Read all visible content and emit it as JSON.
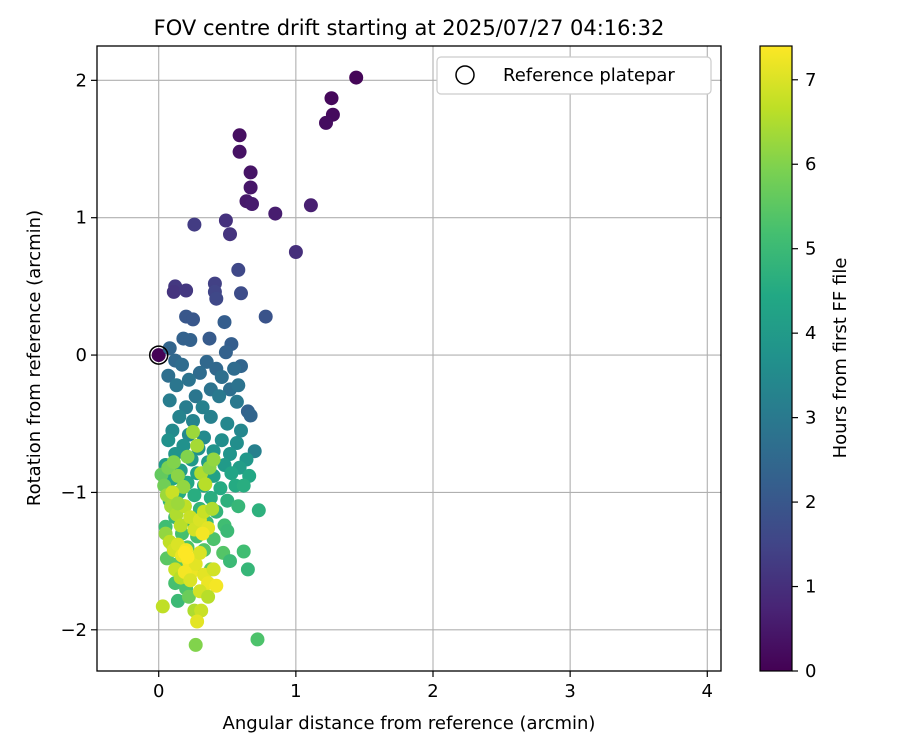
{
  "chart_data": {
    "type": "scatter",
    "title": "FOV centre drift starting at 2025/07/27 04:16:32",
    "xlabel": "Angular distance from reference (arcmin)",
    "ylabel": "Rotation from reference (arcmin)",
    "xlim": [
      -0.45,
      4.1
    ],
    "ylim": [
      -2.3,
      2.25
    ],
    "xticks": [
      0,
      1,
      2,
      3,
      4
    ],
    "yticks": [
      -2,
      -1,
      0,
      1,
      2
    ],
    "xtick_labels": [
      "0",
      "1",
      "2",
      "3",
      "4"
    ],
    "ytick_labels": [
      "−2",
      "−1",
      "0",
      "1",
      "2"
    ],
    "grid": true,
    "legend": {
      "position": "top-right",
      "entries": [
        "Reference platepar"
      ]
    },
    "colorbar": {
      "label": "Hours from first FF file",
      "colormap": "viridis",
      "range": [
        0,
        7.4
      ],
      "ticks": [
        0,
        1,
        2,
        3,
        4,
        5,
        6,
        7
      ],
      "tick_labels": [
        "0",
        "1",
        "2",
        "3",
        "4",
        "5",
        "6",
        "7"
      ]
    },
    "reference_point": {
      "name": "Reference platepar",
      "x": 0,
      "y": 0
    },
    "series": [
      {
        "points": [
          [
            0.0,
            0.0,
            0.05
          ],
          [
            1.44,
            2.02,
            0.1
          ],
          [
            1.26,
            1.87,
            0.15
          ],
          [
            1.27,
            1.75,
            0.2
          ],
          [
            1.22,
            1.69,
            0.25
          ],
          [
            0.59,
            1.6,
            0.3
          ],
          [
            0.59,
            1.48,
            0.35
          ],
          [
            0.67,
            1.33,
            0.4
          ],
          [
            0.67,
            1.22,
            0.45
          ],
          [
            0.64,
            1.12,
            0.5
          ],
          [
            0.68,
            1.1,
            0.55
          ],
          [
            0.85,
            1.03,
            0.6
          ],
          [
            1.11,
            1.09,
            0.65
          ],
          [
            1.0,
            0.75,
            1.0
          ],
          [
            0.49,
            0.98,
            1.05
          ],
          [
            0.52,
            0.88,
            1.1
          ],
          [
            0.26,
            0.95,
            1.3
          ],
          [
            0.41,
            0.52,
            1.4
          ],
          [
            0.41,
            0.46,
            1.5
          ],
          [
            0.42,
            0.41,
            1.6
          ],
          [
            0.12,
            0.5,
            1.2
          ],
          [
            0.11,
            0.46,
            1.1
          ],
          [
            0.2,
            0.47,
            1.2
          ],
          [
            0.58,
            0.62,
            1.6
          ],
          [
            0.6,
            0.45,
            1.7
          ],
          [
            0.78,
            0.28,
            1.9
          ],
          [
            0.2,
            0.28,
            2.0
          ],
          [
            0.25,
            0.26,
            2.0
          ],
          [
            0.37,
            0.12,
            2.1
          ],
          [
            0.48,
            0.24,
            2.2
          ],
          [
            0.53,
            0.08,
            2.2
          ],
          [
            0.18,
            0.12,
            2.3
          ],
          [
            0.23,
            0.11,
            2.3
          ],
          [
            0.08,
            0.05,
            2.4
          ],
          [
            0.49,
            0.02,
            2.3
          ],
          [
            0.35,
            -0.05,
            2.5
          ],
          [
            0.6,
            -0.08,
            2.4
          ],
          [
            0.42,
            -0.1,
            2.5
          ],
          [
            0.12,
            -0.04,
            2.5
          ],
          [
            0.17,
            -0.07,
            2.6
          ],
          [
            0.3,
            -0.13,
            2.6
          ],
          [
            0.46,
            -0.16,
            2.7
          ],
          [
            0.55,
            -0.1,
            2.6
          ],
          [
            0.07,
            -0.15,
            2.7
          ],
          [
            0.22,
            -0.18,
            2.8
          ],
          [
            0.38,
            -0.25,
            2.8
          ],
          [
            0.52,
            -0.25,
            2.7
          ],
          [
            0.58,
            -0.22,
            2.8
          ],
          [
            0.13,
            -0.22,
            2.9
          ],
          [
            0.27,
            -0.3,
            2.9
          ],
          [
            0.44,
            -0.3,
            3.0
          ],
          [
            0.57,
            -0.34,
            3.0
          ],
          [
            0.08,
            -0.33,
            3.1
          ],
          [
            0.65,
            -0.41,
            2.3
          ],
          [
            0.67,
            -0.44,
            2.4
          ],
          [
            0.2,
            -0.38,
            3.1
          ],
          [
            0.32,
            -0.38,
            3.2
          ],
          [
            0.15,
            -0.45,
            3.3
          ],
          [
            0.25,
            -0.48,
            3.3
          ],
          [
            0.38,
            -0.45,
            3.2
          ],
          [
            0.5,
            -0.5,
            3.4
          ],
          [
            0.6,
            -0.55,
            3.4
          ],
          [
            0.1,
            -0.55,
            3.5
          ],
          [
            0.22,
            -0.58,
            3.5
          ],
          [
            0.33,
            -0.6,
            3.5
          ],
          [
            0.46,
            -0.62,
            3.6
          ],
          [
            0.57,
            -0.64,
            3.6
          ],
          [
            0.07,
            -0.62,
            3.7
          ],
          [
            0.18,
            -0.66,
            3.7
          ],
          [
            0.29,
            -0.68,
            3.7
          ],
          [
            0.4,
            -0.7,
            3.8
          ],
          [
            0.52,
            -0.72,
            3.8
          ],
          [
            0.7,
            -0.7,
            3.2
          ],
          [
            0.64,
            -0.76,
            3.9
          ],
          [
            0.12,
            -0.72,
            3.8
          ],
          [
            0.24,
            -0.76,
            3.9
          ],
          [
            0.36,
            -0.78,
            4.0
          ],
          [
            0.48,
            -0.8,
            4.0
          ],
          [
            0.59,
            -0.82,
            4.1
          ],
          [
            0.05,
            -0.8,
            4.0
          ],
          [
            0.16,
            -0.84,
            4.1
          ],
          [
            0.28,
            -0.86,
            4.2
          ],
          [
            0.4,
            -0.88,
            4.2
          ],
          [
            0.53,
            -0.86,
            4.3
          ],
          [
            0.66,
            -0.88,
            4.4
          ],
          [
            0.1,
            -0.9,
            4.3
          ],
          [
            0.21,
            -0.93,
            4.4
          ],
          [
            0.33,
            -0.95,
            4.4
          ],
          [
            0.45,
            -0.97,
            4.5
          ],
          [
            0.56,
            -0.95,
            4.5
          ],
          [
            0.62,
            -0.95,
            4.6
          ],
          [
            0.15,
            -1.0,
            4.5
          ],
          [
            0.26,
            -1.02,
            4.6
          ],
          [
            0.38,
            -1.04,
            4.6
          ],
          [
            0.5,
            -1.06,
            4.7
          ],
          [
            0.08,
            -1.06,
            4.7
          ],
          [
            0.19,
            -1.1,
            4.7
          ],
          [
            0.3,
            -1.12,
            4.8
          ],
          [
            0.42,
            -1.14,
            4.8
          ],
          [
            0.58,
            -1.1,
            4.9
          ],
          [
            0.73,
            -1.13,
            4.7
          ],
          [
            0.12,
            -1.18,
            4.9
          ],
          [
            0.23,
            -1.2,
            5.0
          ],
          [
            0.35,
            -1.22,
            5.0
          ],
          [
            0.48,
            -1.24,
            5.1
          ],
          [
            0.5,
            -1.28,
            5.0
          ],
          [
            0.05,
            -1.25,
            5.1
          ],
          [
            0.17,
            -1.3,
            5.2
          ],
          [
            0.28,
            -1.32,
            5.2
          ],
          [
            0.4,
            -1.34,
            5.3
          ],
          [
            0.1,
            -1.38,
            5.3
          ],
          [
            0.21,
            -1.4,
            5.3
          ],
          [
            0.33,
            -1.42,
            5.4
          ],
          [
            0.47,
            -1.44,
            5.4
          ],
          [
            0.52,
            -1.5,
            5.0
          ],
          [
            0.62,
            -1.43,
            5.1
          ],
          [
            0.65,
            -1.56,
            4.9
          ],
          [
            0.06,
            -1.48,
            5.5
          ],
          [
            0.14,
            -1.52,
            5.5
          ],
          [
            0.26,
            -1.54,
            5.6
          ],
          [
            0.38,
            -1.56,
            5.6
          ],
          [
            0.12,
            -1.66,
            5.2
          ],
          [
            0.2,
            -1.7,
            5.3
          ],
          [
            0.14,
            -1.79,
            5.0
          ],
          [
            0.22,
            -1.76,
            5.7
          ],
          [
            0.72,
            -2.07,
            5.3
          ],
          [
            0.27,
            -2.11,
            6.0
          ],
          [
            0.02,
            -0.87,
            5.6
          ],
          [
            0.04,
            -0.95,
            5.8
          ],
          [
            0.07,
            -0.82,
            5.9
          ],
          [
            0.11,
            -0.78,
            6.0
          ],
          [
            0.14,
            -0.88,
            6.1
          ],
          [
            0.18,
            -0.96,
            6.2
          ],
          [
            0.06,
            -1.02,
            6.3
          ],
          [
            0.21,
            -0.74,
            6.0
          ],
          [
            0.25,
            -0.56,
            6.3
          ],
          [
            0.28,
            -0.66,
            6.4
          ],
          [
            0.31,
            -0.86,
            6.5
          ],
          [
            0.34,
            -0.94,
            6.6
          ],
          [
            0.37,
            -0.82,
            6.1
          ],
          [
            0.4,
            -0.76,
            6.2
          ],
          [
            0.09,
            -1.1,
            6.4
          ],
          [
            0.13,
            -1.16,
            6.5
          ],
          [
            0.16,
            -1.24,
            6.6
          ],
          [
            0.19,
            -1.1,
            6.7
          ],
          [
            0.23,
            -1.18,
            6.8
          ],
          [
            0.26,
            -1.27,
            6.9
          ],
          [
            0.3,
            -1.2,
            7.0
          ],
          [
            0.33,
            -1.14,
            6.8
          ],
          [
            0.36,
            -1.26,
            7.1
          ],
          [
            0.39,
            -1.12,
            6.5
          ],
          [
            0.05,
            -1.3,
            6.2
          ],
          [
            0.08,
            -1.36,
            6.7
          ],
          [
            0.11,
            -1.42,
            6.9
          ],
          [
            0.14,
            -1.38,
            7.0
          ],
          [
            0.17,
            -1.46,
            7.2
          ],
          [
            0.2,
            -1.42,
            7.3
          ],
          [
            0.22,
            -1.5,
            7.3
          ],
          [
            0.24,
            -1.58,
            7.2
          ],
          [
            0.27,
            -1.52,
            7.1
          ],
          [
            0.3,
            -1.44,
            7.0
          ],
          [
            0.33,
            -1.6,
            7.1
          ],
          [
            0.36,
            -1.66,
            7.2
          ],
          [
            0.12,
            -1.56,
            6.8
          ],
          [
            0.16,
            -1.62,
            6.6
          ],
          [
            0.19,
            -1.58,
            7.3
          ],
          [
            0.23,
            -1.64,
            7.0
          ],
          [
            0.3,
            -1.72,
            6.9
          ],
          [
            0.42,
            -1.68,
            7.3
          ],
          [
            0.36,
            -1.76,
            6.6
          ],
          [
            0.26,
            -1.86,
            6.5
          ],
          [
            0.31,
            -1.86,
            6.8
          ],
          [
            0.28,
            -1.94,
            7.1
          ],
          [
            0.03,
            -1.83,
            6.7
          ],
          [
            0.4,
            -1.56,
            6.9
          ],
          [
            0.19,
            -1.44,
            7.4
          ],
          [
            0.21,
            -1.47,
            7.4
          ],
          [
            0.32,
            -1.3,
            7.3
          ],
          [
            0.1,
            -1.0,
            6.8
          ],
          [
            0.14,
            -1.08,
            6.3
          ]
        ]
      }
    ]
  }
}
